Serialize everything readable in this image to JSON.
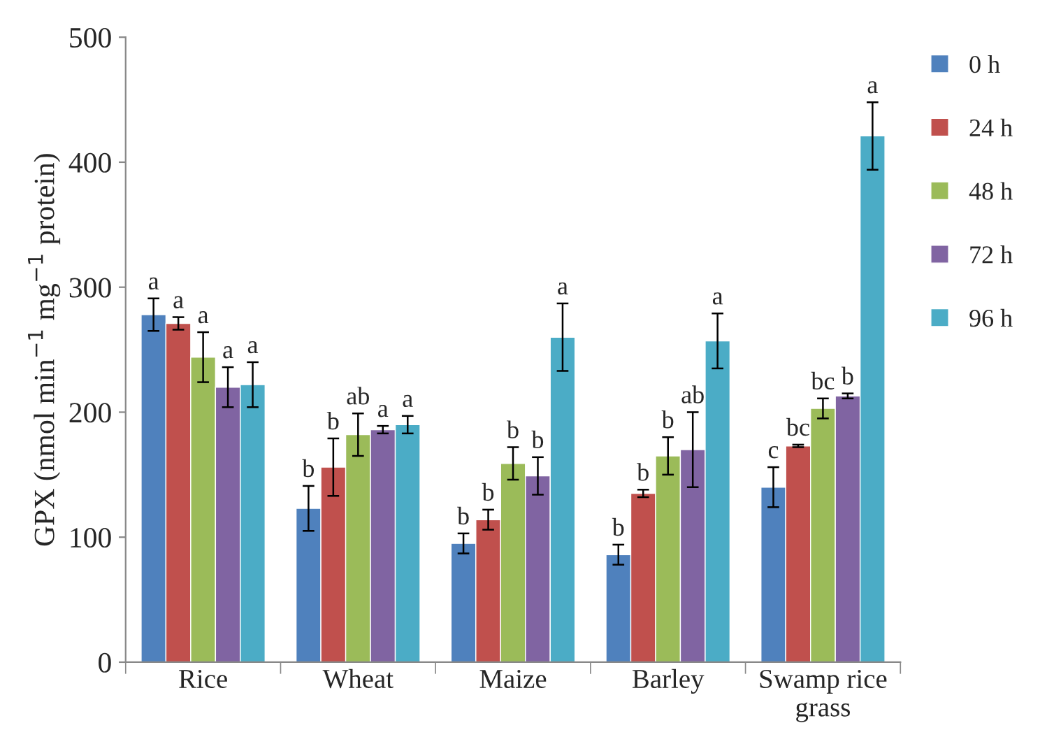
{
  "chart_data": {
    "type": "bar",
    "ylabel": "GPX (nmol min$^{−1}$ mg$^{−1}$ protein)",
    "categories": [
      "Rice",
      "Wheat",
      "Maize",
      "Barley",
      "Swamp rice grass"
    ],
    "series": [
      {
        "name": "0 h",
        "color": "#4f81bd",
        "values": [
          278,
          123,
          95,
          86,
          140
        ],
        "errors": [
          13,
          18,
          8,
          8,
          16
        ],
        "value_labels": [
          "a",
          "b",
          "b",
          "b",
          "c"
        ]
      },
      {
        "name": "24 h",
        "color": "#c0504d",
        "values": [
          271,
          156,
          114,
          135,
          173
        ],
        "errors": [
          5,
          23,
          8,
          3,
          1
        ],
        "value_labels": [
          "a",
          "b",
          "b",
          "b",
          "bc"
        ]
      },
      {
        "name": "48 h",
        "color": "#9bbb59",
        "values": [
          244,
          182,
          159,
          165,
          203
        ],
        "errors": [
          20,
          17,
          13,
          15,
          8
        ],
        "value_labels": [
          "a",
          "ab",
          "b",
          "b",
          "bc"
        ]
      },
      {
        "name": "72 h",
        "color": "#8064a2",
        "values": [
          220,
          186,
          149,
          170,
          213
        ],
        "errors": [
          16,
          3,
          15,
          30,
          2
        ],
        "value_labels": [
          "a",
          "a",
          "b",
          "ab",
          "b"
        ]
      },
      {
        "name": "96 h",
        "color": "#4bacc6",
        "values": [
          222,
          190,
          260,
          257,
          421
        ],
        "errors": [
          18,
          7,
          27,
          22,
          27
        ],
        "value_labels": [
          "a",
          "a",
          "a",
          "a",
          "a"
        ]
      }
    ],
    "ylim": [
      0,
      500
    ],
    "yticks": [
      0,
      100,
      200,
      300,
      400,
      500
    ],
    "grid": false,
    "legend": "right"
  }
}
